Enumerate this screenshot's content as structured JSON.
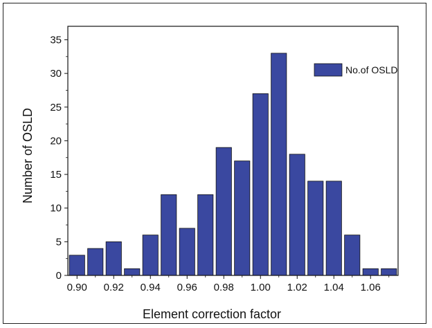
{
  "chart_data": {
    "type": "bar",
    "xlabel": "Element correction factor",
    "ylabel": "Number of OSLD",
    "x": [
      0.9,
      0.91,
      0.92,
      0.93,
      0.94,
      0.95,
      0.96,
      0.97,
      0.98,
      0.99,
      1.0,
      1.01,
      1.02,
      1.03,
      1.04,
      1.05,
      1.06,
      1.07
    ],
    "values": [
      3,
      4,
      5,
      1,
      6,
      12,
      7,
      12,
      19,
      17,
      27,
      33,
      18,
      14,
      14,
      6,
      1,
      1
    ],
    "series": [
      {
        "name": "No.of OSLD",
        "values": [
          3,
          4,
          5,
          1,
          6,
          12,
          7,
          12,
          19,
          17,
          27,
          33,
          18,
          14,
          14,
          6,
          1,
          1
        ]
      }
    ],
    "xlim": [
      0.895,
      1.075
    ],
    "ylim": [
      0,
      37
    ],
    "x_ticks": [
      "0.90",
      "0.92",
      "0.94",
      "0.96",
      "0.98",
      "1.00",
      "1.02",
      "1.04",
      "1.06"
    ],
    "y_ticks": [
      "0",
      "5",
      "10",
      "15",
      "20",
      "25",
      "30",
      "35"
    ],
    "legend_position": "top-right",
    "bar_color": "#3a48a0",
    "grid": false
  }
}
